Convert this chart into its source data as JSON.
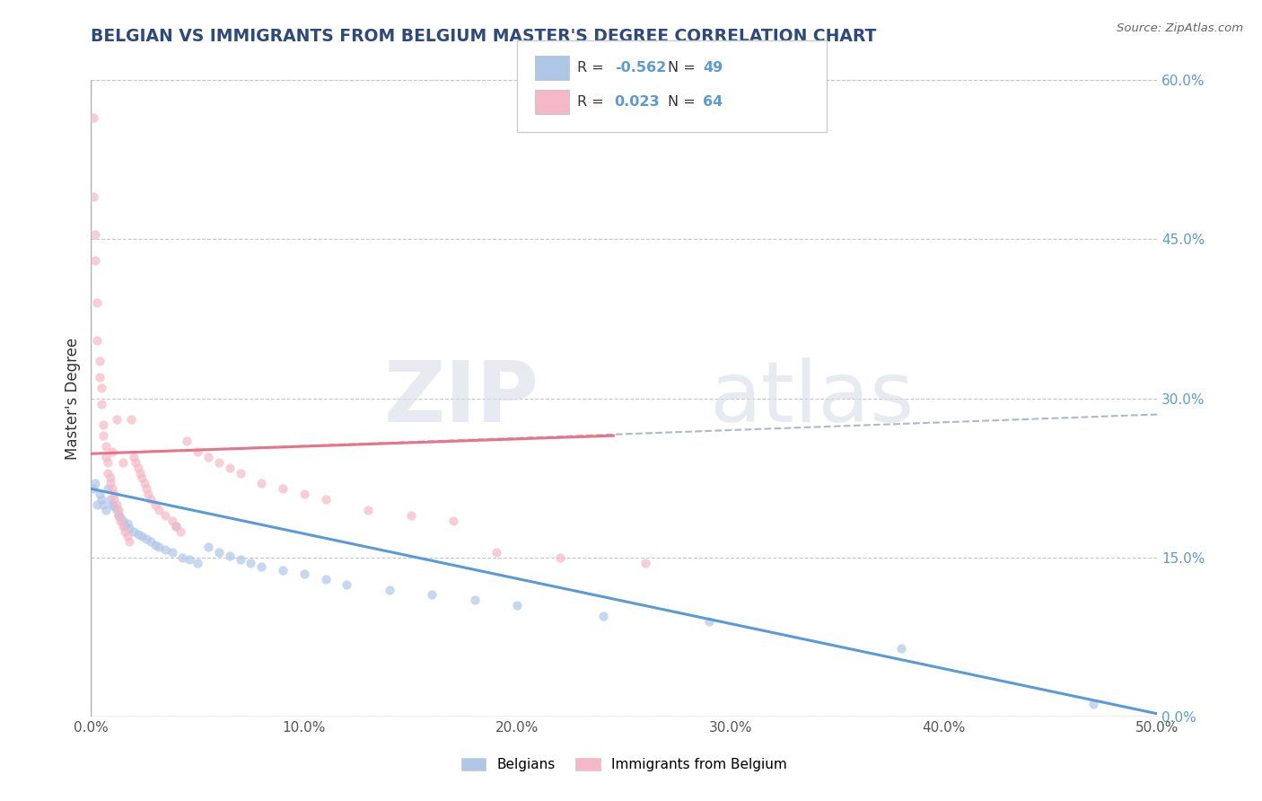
{
  "title": "BELGIAN VS IMMIGRANTS FROM BELGIUM MASTER'S DEGREE CORRELATION CHART",
  "source": "Source: ZipAtlas.com",
  "ylabel": "Master's Degree",
  "watermark_zip": "ZIP",
  "watermark_atlas": "atlas",
  "legend_items": [
    {
      "r_label": "R = ",
      "r_val": "-0.562",
      "n_label": "  N = ",
      "n_val": "49",
      "color": "#aec6e8"
    },
    {
      "r_label": "R =  ",
      "r_val": "0.023",
      "n_label": "  N = ",
      "n_val": "64",
      "color": "#f4b8c8"
    }
  ],
  "legend_labels_bottom": [
    "Belgians",
    "Immigrants from Belgium"
  ],
  "xlim": [
    0.0,
    0.5
  ],
  "ylim": [
    0.0,
    0.6
  ],
  "xticks": [
    0.0,
    0.1,
    0.2,
    0.3,
    0.4,
    0.5
  ],
  "yticks_right": [
    0.0,
    0.15,
    0.3,
    0.45,
    0.6
  ],
  "blue_scatter_x": [
    0.001,
    0.002,
    0.003,
    0.004,
    0.005,
    0.006,
    0.007,
    0.008,
    0.009,
    0.01,
    0.011,
    0.012,
    0.013,
    0.014,
    0.015,
    0.016,
    0.017,
    0.018,
    0.02,
    0.022,
    0.024,
    0.026,
    0.028,
    0.03,
    0.032,
    0.035,
    0.038,
    0.04,
    0.043,
    0.046,
    0.05,
    0.055,
    0.06,
    0.065,
    0.07,
    0.075,
    0.08,
    0.09,
    0.1,
    0.11,
    0.12,
    0.14,
    0.16,
    0.18,
    0.2,
    0.24,
    0.29,
    0.38,
    0.47
  ],
  "blue_scatter_y": [
    0.215,
    0.22,
    0.2,
    0.21,
    0.205,
    0.2,
    0.195,
    0.215,
    0.205,
    0.2,
    0.198,
    0.195,
    0.19,
    0.188,
    0.185,
    0.18,
    0.182,
    0.178,
    0.175,
    0.172,
    0.17,
    0.168,
    0.165,
    0.162,
    0.16,
    0.158,
    0.155,
    0.18,
    0.15,
    0.148,
    0.145,
    0.16,
    0.155,
    0.152,
    0.148,
    0.145,
    0.142,
    0.138,
    0.135,
    0.13,
    0.125,
    0.12,
    0.115,
    0.11,
    0.105,
    0.095,
    0.09,
    0.065,
    0.012
  ],
  "pink_scatter_x": [
    0.001,
    0.001,
    0.002,
    0.002,
    0.003,
    0.003,
    0.004,
    0.004,
    0.005,
    0.005,
    0.006,
    0.006,
    0.007,
    0.007,
    0.008,
    0.008,
    0.009,
    0.009,
    0.01,
    0.01,
    0.011,
    0.011,
    0.012,
    0.012,
    0.013,
    0.013,
    0.014,
    0.015,
    0.015,
    0.016,
    0.017,
    0.018,
    0.019,
    0.02,
    0.021,
    0.022,
    0.023,
    0.024,
    0.025,
    0.026,
    0.027,
    0.028,
    0.03,
    0.032,
    0.035,
    0.038,
    0.04,
    0.042,
    0.045,
    0.05,
    0.055,
    0.06,
    0.065,
    0.07,
    0.08,
    0.09,
    0.1,
    0.11,
    0.13,
    0.15,
    0.17,
    0.19,
    0.22,
    0.26
  ],
  "pink_scatter_y": [
    0.565,
    0.49,
    0.455,
    0.43,
    0.39,
    0.355,
    0.335,
    0.32,
    0.31,
    0.295,
    0.275,
    0.265,
    0.255,
    0.245,
    0.24,
    0.23,
    0.225,
    0.22,
    0.215,
    0.25,
    0.21,
    0.205,
    0.2,
    0.28,
    0.195,
    0.19,
    0.185,
    0.18,
    0.24,
    0.175,
    0.17,
    0.165,
    0.28,
    0.245,
    0.24,
    0.235,
    0.23,
    0.225,
    0.22,
    0.215,
    0.21,
    0.205,
    0.2,
    0.195,
    0.19,
    0.185,
    0.18,
    0.175,
    0.26,
    0.25,
    0.245,
    0.24,
    0.235,
    0.23,
    0.22,
    0.215,
    0.21,
    0.205,
    0.195,
    0.19,
    0.185,
    0.155,
    0.15,
    0.145
  ],
  "blue_line_x": [
    0.0,
    0.5
  ],
  "blue_line_y": [
    0.215,
    0.003
  ],
  "pink_line_x": [
    0.0,
    0.245
  ],
  "pink_line_y": [
    0.248,
    0.265
  ],
  "dashed_line_x": [
    0.0,
    0.5
  ],
  "dashed_line_y": [
    0.248,
    0.285
  ],
  "blue_dot_color": "#aec6e8",
  "pink_dot_color": "#f4b8c8",
  "blue_line_color": "#5b9bd5",
  "pink_line_color": "#e8748a",
  "dashed_line_color": "#b0b8c8",
  "dot_size": 55,
  "background_color": "#ffffff",
  "grid_color": "#c0c8d8",
  "title_color": "#2e4a7a",
  "source_color": "#666666",
  "ylabel_color": "#333333"
}
